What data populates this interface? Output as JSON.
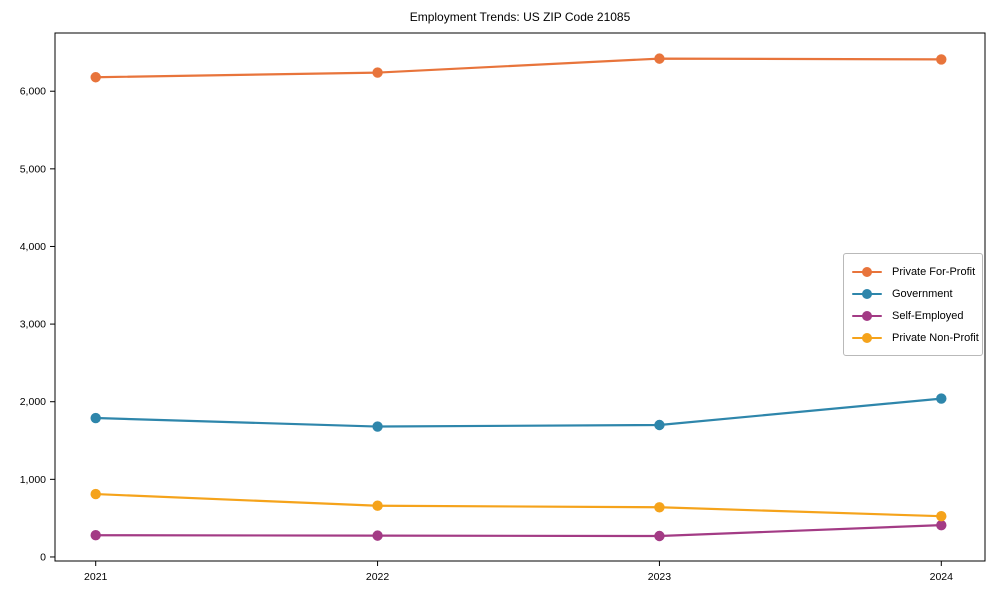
{
  "figure": {
    "title": "Employment Trends: US ZIP Code 21085"
  },
  "chart_data": {
    "type": "line",
    "title": "Employment Trends: US ZIP Code 21085",
    "xlabel": "",
    "ylabel": "",
    "grid": false,
    "legend_position": "center-right",
    "marker": "circle",
    "categories": [
      "2021",
      "2022",
      "2023",
      "2024"
    ],
    "y_ticks": [
      0,
      1000,
      2000,
      3000,
      4000,
      5000,
      6000
    ],
    "y_tick_labels": [
      "0",
      "1,000",
      "2,000",
      "3,000",
      "4,000",
      "5,000",
      "6,000"
    ],
    "ylim": [
      -52,
      6750
    ],
    "series": [
      {
        "name": "Private For-Profit",
        "color": "#E8743B",
        "values": [
          6180,
          6240,
          6420,
          6410
        ]
      },
      {
        "name": "Government",
        "color": "#2E86AB",
        "values": [
          1790,
          1680,
          1700,
          2040
        ]
      },
      {
        "name": "Self-Employed",
        "color": "#A33B85",
        "values": [
          280,
          275,
          270,
          410
        ]
      },
      {
        "name": "Private Non-Profit",
        "color": "#F5A31B",
        "values": [
          810,
          660,
          640,
          525
        ]
      }
    ]
  }
}
